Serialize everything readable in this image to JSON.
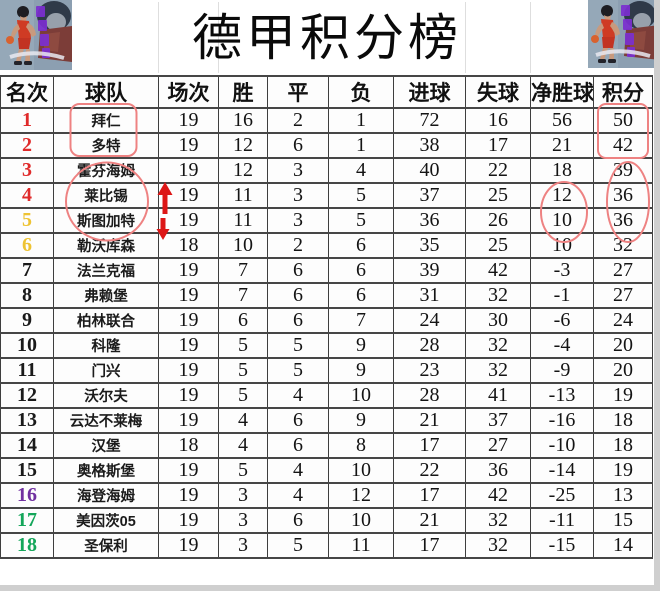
{
  "title": "德甲积分榜",
  "table": {
    "columns": [
      "名次",
      "球队",
      "场次",
      "胜",
      "平",
      "负",
      "进球",
      "失球",
      "净胜球",
      "积分"
    ],
    "rows": [
      {
        "rank": "1",
        "team": "拜仁",
        "played": "19",
        "win": "16",
        "draw": "2",
        "loss": "1",
        "goals_for": "72",
        "goals_against": "16",
        "goal_diff": "56",
        "points": "50",
        "rank_color": "red"
      },
      {
        "rank": "2",
        "team": "多特",
        "played": "19",
        "win": "12",
        "draw": "6",
        "loss": "1",
        "goals_for": "38",
        "goals_against": "17",
        "goal_diff": "21",
        "points": "42",
        "rank_color": "red"
      },
      {
        "rank": "3",
        "team": "霍芬海姆",
        "played": "19",
        "win": "12",
        "draw": "3",
        "loss": "4",
        "goals_for": "40",
        "goals_against": "22",
        "goal_diff": "18",
        "points": "39",
        "rank_color": "red"
      },
      {
        "rank": "4",
        "team": "莱比锡",
        "played": "19",
        "win": "11",
        "draw": "3",
        "loss": "5",
        "goals_for": "37",
        "goals_against": "25",
        "goal_diff": "12",
        "points": "36",
        "rank_color": "red"
      },
      {
        "rank": "5",
        "team": "斯图加特",
        "played": "19",
        "win": "11",
        "draw": "3",
        "loss": "5",
        "goals_for": "36",
        "goals_against": "26",
        "goal_diff": "10",
        "points": "36",
        "rank_color": "yellow"
      },
      {
        "rank": "6",
        "team": "勒沃库森",
        "played": "18",
        "win": "10",
        "draw": "2",
        "loss": "6",
        "goals_for": "35",
        "goals_against": "25",
        "goal_diff": "10",
        "points": "32",
        "rank_color": "yellow"
      },
      {
        "rank": "7",
        "team": "法兰克福",
        "played": "19",
        "win": "7",
        "draw": "6",
        "loss": "6",
        "goals_for": "39",
        "goals_against": "42",
        "goal_diff": "-3",
        "points": "27",
        "rank_color": "black"
      },
      {
        "rank": "8",
        "team": "弗赖堡",
        "played": "19",
        "win": "7",
        "draw": "6",
        "loss": "6",
        "goals_for": "31",
        "goals_against": "32",
        "goal_diff": "-1",
        "points": "27",
        "rank_color": "black"
      },
      {
        "rank": "9",
        "team": "柏林联合",
        "played": "19",
        "win": "6",
        "draw": "6",
        "loss": "7",
        "goals_for": "24",
        "goals_against": "30",
        "goal_diff": "-6",
        "points": "24",
        "rank_color": "black"
      },
      {
        "rank": "10",
        "team": "科隆",
        "played": "19",
        "win": "5",
        "draw": "5",
        "loss": "9",
        "goals_for": "28",
        "goals_against": "32",
        "goal_diff": "-4",
        "points": "20",
        "rank_color": "black"
      },
      {
        "rank": "11",
        "team": "门兴",
        "played": "19",
        "win": "5",
        "draw": "5",
        "loss": "9",
        "goals_for": "23",
        "goals_against": "32",
        "goal_diff": "-9",
        "points": "20",
        "rank_color": "black"
      },
      {
        "rank": "12",
        "team": "沃尔夫",
        "played": "19",
        "win": "5",
        "draw": "4",
        "loss": "10",
        "goals_for": "28",
        "goals_against": "41",
        "goal_diff": "-13",
        "points": "19",
        "rank_color": "black"
      },
      {
        "rank": "13",
        "team": "云达不莱梅",
        "played": "19",
        "win": "4",
        "draw": "6",
        "loss": "9",
        "goals_for": "21",
        "goals_against": "37",
        "goal_diff": "-16",
        "points": "18",
        "rank_color": "black"
      },
      {
        "rank": "14",
        "team": "汉堡",
        "played": "18",
        "win": "4",
        "draw": "6",
        "loss": "8",
        "goals_for": "17",
        "goals_against": "27",
        "goal_diff": "-10",
        "points": "18",
        "rank_color": "black"
      },
      {
        "rank": "15",
        "team": "奥格斯堡",
        "played": "19",
        "win": "5",
        "draw": "4",
        "loss": "10",
        "goals_for": "22",
        "goals_against": "36",
        "goal_diff": "-14",
        "points": "19",
        "rank_color": "black"
      },
      {
        "rank": "16",
        "team": "海登海姆",
        "played": "19",
        "win": "3",
        "draw": "4",
        "loss": "12",
        "goals_for": "17",
        "goals_against": "42",
        "goal_diff": "-25",
        "points": "13",
        "rank_color": "purple"
      },
      {
        "rank": "17",
        "team": "美因茨05",
        "played": "19",
        "win": "3",
        "draw": "6",
        "loss": "10",
        "goals_for": "21",
        "goals_against": "32",
        "goal_diff": "-11",
        "points": "15",
        "rank_color": "green"
      },
      {
        "rank": "18",
        "team": "圣保利",
        "played": "19",
        "win": "3",
        "draw": "5",
        "loss": "11",
        "goals_for": "17",
        "goals_against": "32",
        "goal_diff": "-15",
        "points": "14",
        "rank_color": "green"
      }
    ]
  },
  "chart_data": {
    "type": "table",
    "title": "德甲积分榜",
    "columns": [
      "名次",
      "球队",
      "场次",
      "胜",
      "平",
      "负",
      "进球",
      "失球",
      "净胜球",
      "积分"
    ],
    "rows": [
      [
        "1",
        "拜仁",
        "19",
        "16",
        "2",
        "1",
        "72",
        "16",
        "56",
        "50"
      ],
      [
        "2",
        "多特",
        "19",
        "12",
        "6",
        "1",
        "38",
        "17",
        "21",
        "42"
      ],
      [
        "3",
        "霍芬海姆",
        "19",
        "12",
        "3",
        "4",
        "40",
        "22",
        "18",
        "39"
      ],
      [
        "4",
        "莱比锡",
        "19",
        "11",
        "3",
        "5",
        "37",
        "25",
        "12",
        "36"
      ],
      [
        "5",
        "斯图加特",
        "19",
        "11",
        "3",
        "5",
        "36",
        "26",
        "10",
        "36"
      ],
      [
        "6",
        "勒沃库森",
        "18",
        "10",
        "2",
        "6",
        "35",
        "25",
        "10",
        "32"
      ],
      [
        "7",
        "法兰克福",
        "19",
        "7",
        "6",
        "6",
        "39",
        "42",
        "-3",
        "27"
      ],
      [
        "8",
        "弗赖堡",
        "19",
        "7",
        "6",
        "6",
        "31",
        "32",
        "-1",
        "27"
      ],
      [
        "9",
        "柏林联合",
        "19",
        "6",
        "6",
        "7",
        "24",
        "30",
        "-6",
        "24"
      ],
      [
        "10",
        "科隆",
        "19",
        "5",
        "5",
        "9",
        "28",
        "32",
        "-4",
        "20"
      ],
      [
        "11",
        "门兴",
        "19",
        "5",
        "5",
        "9",
        "23",
        "32",
        "-9",
        "20"
      ],
      [
        "12",
        "沃尔夫",
        "19",
        "5",
        "4",
        "10",
        "28",
        "41",
        "-13",
        "19"
      ],
      [
        "13",
        "云达不莱梅",
        "19",
        "4",
        "6",
        "9",
        "21",
        "37",
        "-16",
        "18"
      ],
      [
        "14",
        "汉堡",
        "18",
        "4",
        "6",
        "8",
        "17",
        "27",
        "-10",
        "18"
      ],
      [
        "15",
        "奥格斯堡",
        "19",
        "5",
        "4",
        "10",
        "22",
        "36",
        "-14",
        "19"
      ],
      [
        "16",
        "海登海姆",
        "19",
        "3",
        "4",
        "12",
        "17",
        "42",
        "-25",
        "13"
      ],
      [
        "17",
        "美因茨05",
        "19",
        "3",
        "6",
        "10",
        "21",
        "32",
        "-11",
        "15"
      ],
      [
        "18",
        "圣保利",
        "19",
        "3",
        "5",
        "11",
        "17",
        "32",
        "-15",
        "14"
      ]
    ]
  },
  "colors": {
    "rank": {
      "red": "#e02a2a",
      "yellow": "#eec333",
      "black": "#1a1a1a",
      "purple": "#7030a0",
      "green": "#14a65a"
    },
    "annotation_soft_red": "#ee8282",
    "annotation_arrow_red": "#dd1616",
    "grid": "#464646"
  },
  "annotations": [
    {
      "name": "box-teams-1-2",
      "meaning": "red box around 拜仁 / 多特"
    },
    {
      "name": "circle-teams-3-5",
      "meaning": "red circle around 霍芬海姆 / 莱比锡 / 斯图加特"
    },
    {
      "name": "arrow-up-row-4",
      "meaning": "red up arrow beside 莱比锡"
    },
    {
      "name": "arrow-down-row-5",
      "meaning": "red down arrow beside 斯图加特"
    },
    {
      "name": "box-points-1-2",
      "meaning": "red box around points 50 / 42"
    },
    {
      "name": "ellipse-goaldiff-4-5",
      "meaning": "red ellipse around goal diff 12 / 10"
    },
    {
      "name": "ellipse-points-3-5",
      "meaning": "red ellipse around points 39 / 36 / 36"
    }
  ]
}
